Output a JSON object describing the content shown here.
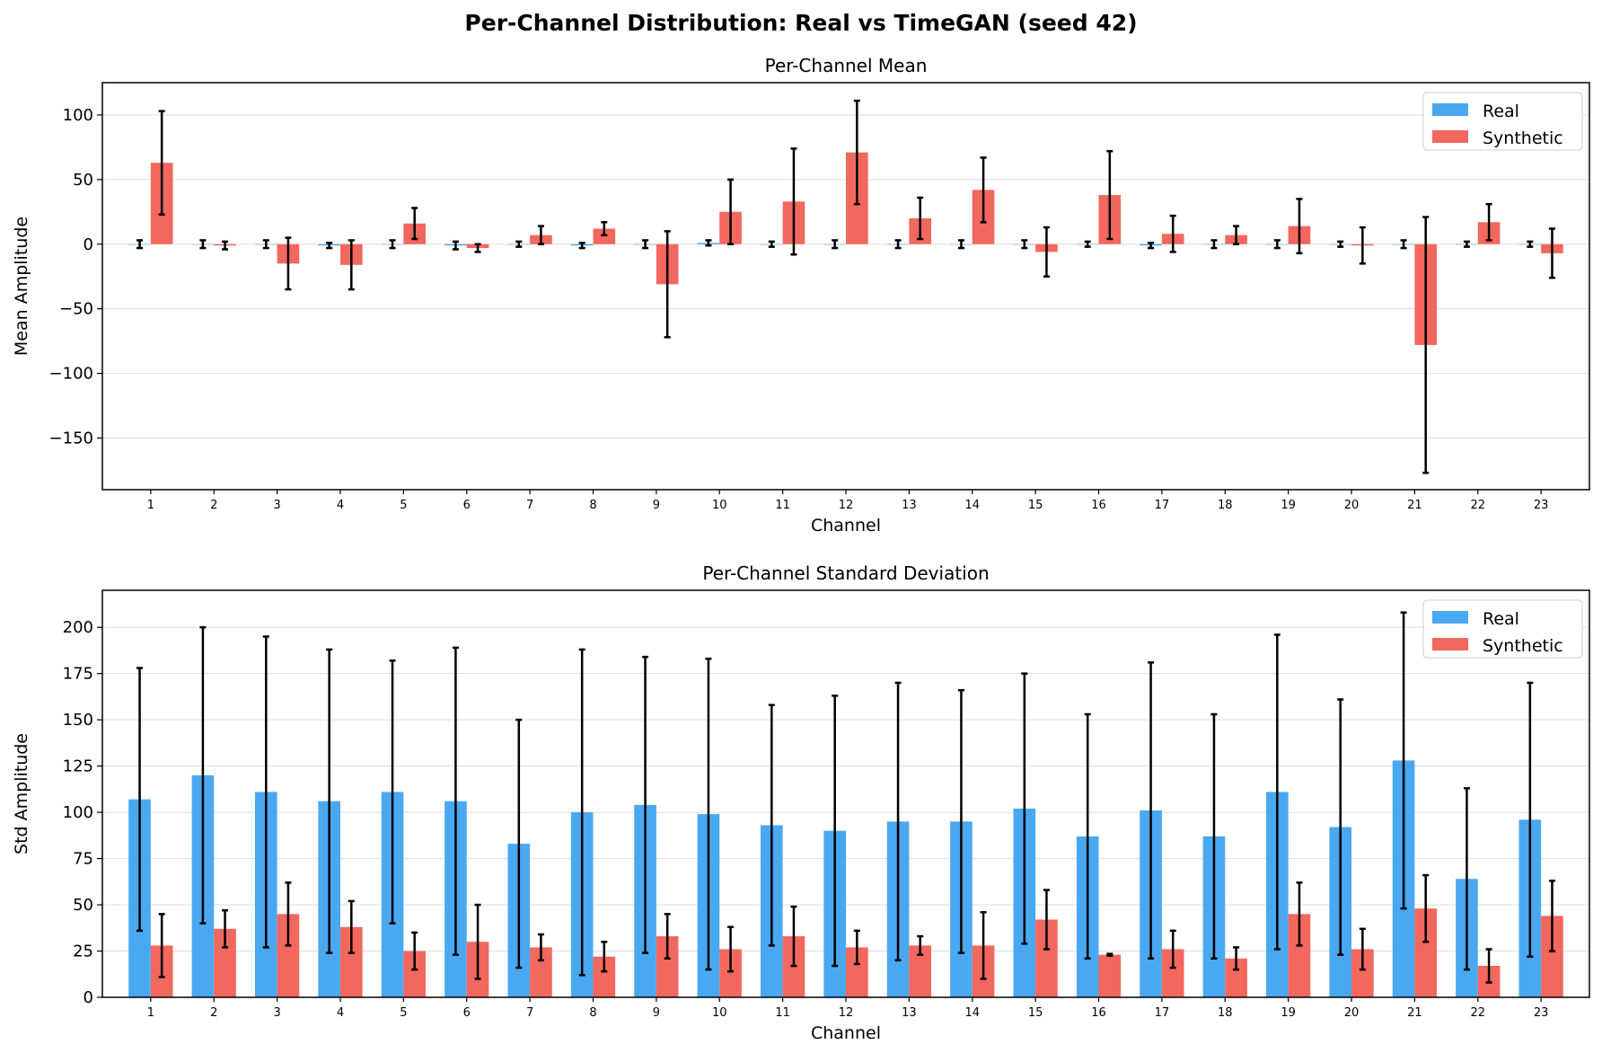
{
  "figure": {
    "title": "Per-Channel Distribution: Real vs TimeGAN (seed 42)"
  },
  "colors": {
    "real": "#4aa8f0",
    "synthetic": "#f2675e",
    "error_bar": "#000000",
    "grid": "#dddddd"
  },
  "chart_data": [
    {
      "type": "bar",
      "title": "Per-Channel Mean",
      "xlabel": "Channel",
      "ylabel": "Mean Amplitude",
      "ylim": [
        -190,
        125
      ],
      "yticks": [
        -150,
        -100,
        -50,
        0,
        50,
        100
      ],
      "ytick_labels": [
        "−150",
        "−100",
        "−50",
        "0",
        "50",
        "100"
      ],
      "grid": "horizontal",
      "legend_position": "top-right",
      "categories": [
        "1",
        "2",
        "3",
        "4",
        "5",
        "6",
        "7",
        "8",
        "9",
        "10",
        "11",
        "12",
        "13",
        "14",
        "15",
        "16",
        "17",
        "18",
        "19",
        "20",
        "21",
        "22",
        "23"
      ],
      "series": [
        {
          "name": "Real",
          "values": [
            0,
            0,
            0,
            -1,
            0,
            -1,
            0,
            -1,
            0,
            1,
            0,
            0,
            0,
            0,
            0,
            0,
            -1,
            0,
            0,
            0,
            0,
            0,
            0
          ],
          "errors": [
            3,
            3,
            3,
            2,
            3,
            3,
            2,
            2,
            3,
            2,
            2,
            3,
            3,
            3,
            3,
            2,
            2,
            3,
            3,
            2,
            3,
            2,
            2
          ]
        },
        {
          "name": "Synthetic",
          "values": [
            63,
            -1,
            -15,
            -16,
            16,
            -3,
            7,
            12,
            -31,
            25,
            33,
            71,
            20,
            42,
            -6,
            38,
            8,
            7,
            14,
            -1,
            -78,
            17,
            -7
          ],
          "errors": [
            40,
            3,
            20,
            19,
            12,
            3,
            7,
            5,
            41,
            25,
            41,
            40,
            16,
            25,
            19,
            34,
            14,
            7,
            21,
            14,
            99,
            14,
            19
          ]
        }
      ]
    },
    {
      "type": "bar",
      "title": "Per-Channel Standard Deviation",
      "xlabel": "Channel",
      "ylabel": "Std Amplitude",
      "ylim": [
        0,
        220
      ],
      "yticks": [
        0,
        25,
        50,
        75,
        100,
        125,
        150,
        175,
        200
      ],
      "ytick_labels": [
        "0",
        "25",
        "50",
        "75",
        "100",
        "125",
        "150",
        "175",
        "200"
      ],
      "grid": "horizontal",
      "legend_position": "top-right",
      "categories": [
        "1",
        "2",
        "3",
        "4",
        "5",
        "6",
        "7",
        "8",
        "9",
        "10",
        "11",
        "12",
        "13",
        "14",
        "15",
        "16",
        "17",
        "18",
        "19",
        "20",
        "21",
        "22",
        "23"
      ],
      "series": [
        {
          "name": "Real",
          "values": [
            107,
            120,
            111,
            106,
            111,
            106,
            83,
            100,
            104,
            99,
            93,
            90,
            95,
            95,
            102,
            87,
            101,
            87,
            111,
            92,
            128,
            64,
            96
          ],
          "errors": [
            71,
            80,
            84,
            82,
            71,
            83,
            67,
            88,
            80,
            84,
            65,
            73,
            75,
            71,
            73,
            66,
            80,
            66,
            85,
            69,
            80,
            49,
            74
          ]
        },
        {
          "name": "Synthetic",
          "values": [
            28,
            37,
            45,
            38,
            25,
            30,
            27,
            22,
            33,
            26,
            33,
            27,
            28,
            28,
            42,
            23,
            26,
            21,
            45,
            26,
            48,
            17,
            44
          ],
          "errors": [
            17,
            10,
            17,
            14,
            10,
            20,
            7,
            8,
            12,
            12,
            16,
            9,
            5,
            18,
            16,
            0.5,
            10,
            6,
            17,
            11,
            18,
            9,
            19
          ]
        }
      ]
    }
  ]
}
